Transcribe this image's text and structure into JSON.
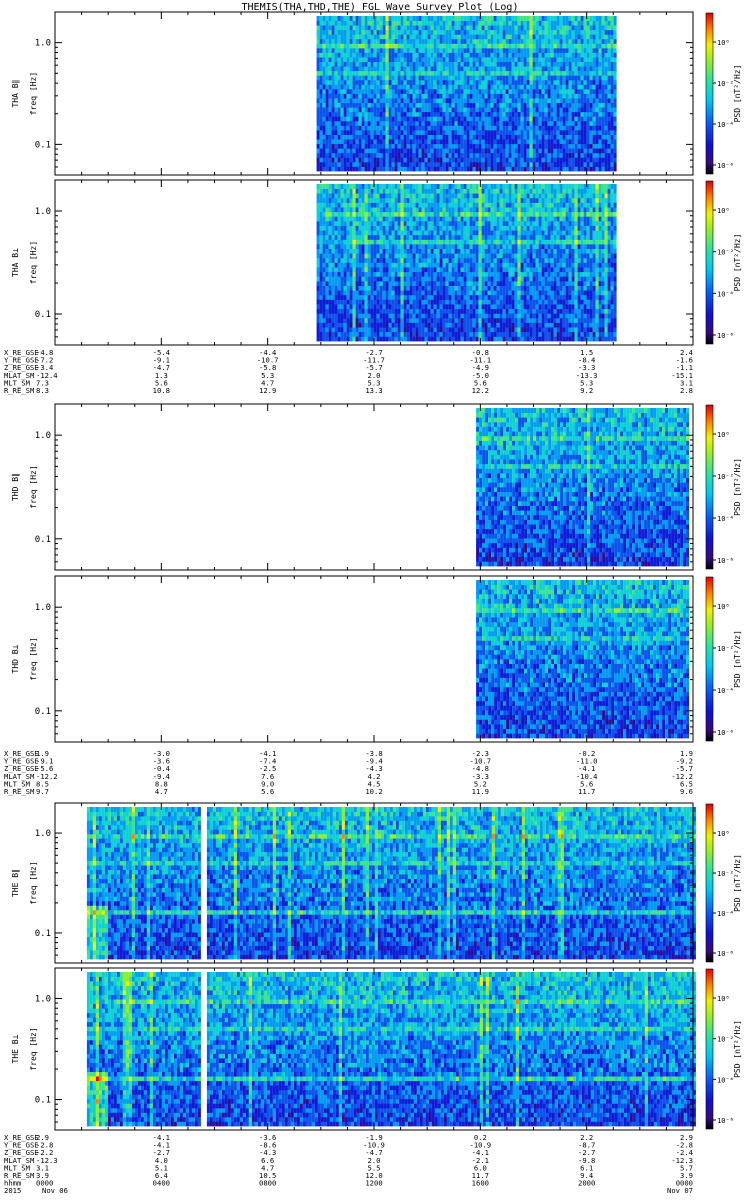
{
  "title": "THEMIS(THA,THD,THE) FGL Wave Survey Plot (Log)",
  "colors": {
    "plot_background": "#ffffff",
    "axis": "#000000",
    "frame": "#000000"
  },
  "chart_data": [
    {
      "type": "heatmap",
      "probe": "THA",
      "panels": [
        {
          "ylabel": [
            "THA B∥",
            "freq [Hz]"
          ],
          "colorbar_label": "PSD [nT²/Hz]"
        },
        {
          "ylabel": [
            "THA B⊥",
            "freq [Hz]"
          ],
          "colorbar_label": "PSD [nT²/Hz]"
        }
      ],
      "ylog": true,
      "ylim": [
        0.05,
        2.0
      ],
      "yticks": [
        "1.0",
        "0.1"
      ],
      "data_range_fraction": [
        0.41,
        0.88
      ],
      "colorbar_ticks": [
        "10⁰",
        "10⁻²",
        "10⁻⁴",
        "10⁻⁶"
      ],
      "ephemeris": {
        "labels": [
          "X_RE_GSE",
          "Y_RE_GSE",
          "Z_RE_GSE",
          "MLAT_SM",
          "MLT_SM",
          "R_RE_SM"
        ],
        "columns": [
          [
            "-4.8",
            "-5.4",
            "-4.4",
            "-2.7",
            "-0.8",
            "1.5",
            "2.4"
          ],
          [
            "-7.2",
            "-9.1",
            "-10.7",
            "-11.7",
            "-11.1",
            "-8.4",
            "-1.6"
          ],
          [
            "-3.4",
            "-4.7",
            "-5.8",
            "-5.7",
            "-4.9",
            "-3.3",
            "-1.1"
          ],
          [
            "-12.4",
            "1.3",
            "5.3",
            "2.0",
            "-5.0",
            "-13.3",
            "-15.1"
          ],
          [
            "7.3",
            "5.6",
            "4.7",
            "5.3",
            "5.6",
            "5.3",
            "3.1"
          ],
          [
            "8.3",
            "10.8",
            "12.9",
            "13.3",
            "12.2",
            "9.2",
            "2.8"
          ]
        ]
      }
    },
    {
      "type": "heatmap",
      "probe": "THD",
      "panels": [
        {
          "ylabel": [
            "THD B∥",
            "freq [Hz]"
          ],
          "colorbar_label": "PSD [nT²/Hz]"
        },
        {
          "ylabel": [
            "THD B⊥",
            "freq [Hz]"
          ],
          "colorbar_label": "PSD [nT²/Hz]"
        }
      ],
      "ylog": true,
      "ylim": [
        0.05,
        2.0
      ],
      "yticks": [
        "1.0",
        "0.1"
      ],
      "data_range_fraction": [
        0.66,
        0.99
      ],
      "colorbar_ticks": [
        "10⁰",
        "10⁻²",
        "10⁻⁴",
        "10⁻⁶"
      ],
      "ephemeris": {
        "labels": [
          "X_RE_GSE",
          "Y_RE_GSE",
          "Z_RE_GSE",
          "MLAT_SM",
          "MLT_SM",
          "R_RE_SM"
        ],
        "columns": [
          [
            "1.9",
            "-3.0",
            "-4.1",
            "-3.8",
            "-2.3",
            "-0.2",
            "1.9"
          ],
          [
            "-9.1",
            "-3.6",
            "-7.4",
            "-9.4",
            "-10.7",
            "-11.0",
            "-9.2"
          ],
          [
            "-5.6",
            "-0.4",
            "-2.5",
            "-4.3",
            "-4.8",
            "-4.1",
            "-5.7"
          ],
          [
            "-12.2",
            "-9.4",
            "7.6",
            "4.2",
            "-3.3",
            "-10.4",
            "-12.2"
          ],
          [
            "8.5",
            "8.8",
            "9.0",
            "4.5",
            "5.2",
            "5.6",
            "6.5"
          ],
          [
            "9.7",
            "4.7",
            "5.6",
            "10.2",
            "11.9",
            "11.7",
            "9.6"
          ]
        ]
      }
    },
    {
      "type": "heatmap",
      "probe": "THE",
      "panels": [
        {
          "ylabel": [
            "THE B∥",
            "freq [Hz]"
          ],
          "colorbar_label": "PSD [nT²/Hz]"
        },
        {
          "ylabel": [
            "THE B⊥",
            "freq [Hz]"
          ],
          "colorbar_label": "PSD [nT²/Hz]"
        }
      ],
      "ylog": true,
      "ylim": [
        0.05,
        2.0
      ],
      "yticks": [
        "1.0",
        "0.1"
      ],
      "data_range_fraction": [
        0.05,
        1.0
      ],
      "gap_fraction": [
        0.226,
        0.236
      ],
      "colorbar_ticks": [
        "10⁰",
        "10⁻²",
        "10⁻⁴",
        "10⁻⁶"
      ],
      "ephemeris": {
        "labels": [
          "X_RE_GSE",
          "Y_RE_GSE",
          "Z_RE_GSE",
          "MLAT_SM",
          "MLT_SM",
          "R_RE_SM"
        ],
        "columns": [
          [
            "2.9",
            "-4.1",
            "-3.6",
            "-1.9",
            "0.2",
            "2.2",
            "2.9"
          ],
          [
            "-2.8",
            "-4.1",
            "-8.6",
            "-10.9",
            "-10.9",
            "-8.7",
            "-2.8"
          ],
          [
            "-2.2",
            "-2.7",
            "-4.3",
            "-4.7",
            "-4.1",
            "-2.7",
            "-2.4"
          ],
          [
            "-12.3",
            "4.0",
            "6.6",
            "2.0",
            "-2.1",
            "-9.8",
            "-12.3"
          ],
          [
            "3.1",
            "5.1",
            "4.7",
            "5.5",
            "6.0",
            "6.1",
            "5.7"
          ],
          [
            "3.9",
            "6.4",
            "10.5",
            "12.0",
            "11.7",
            "9.4",
            "3.9"
          ]
        ]
      },
      "time_axis": {
        "labels": [
          "hhmm",
          "2015"
        ],
        "hhmm": [
          "0000",
          "0400",
          "0800",
          "1200",
          "1600",
          "2000",
          "0000"
        ],
        "date_start": "Nov 06",
        "date_end": "Nov 07"
      }
    }
  ]
}
